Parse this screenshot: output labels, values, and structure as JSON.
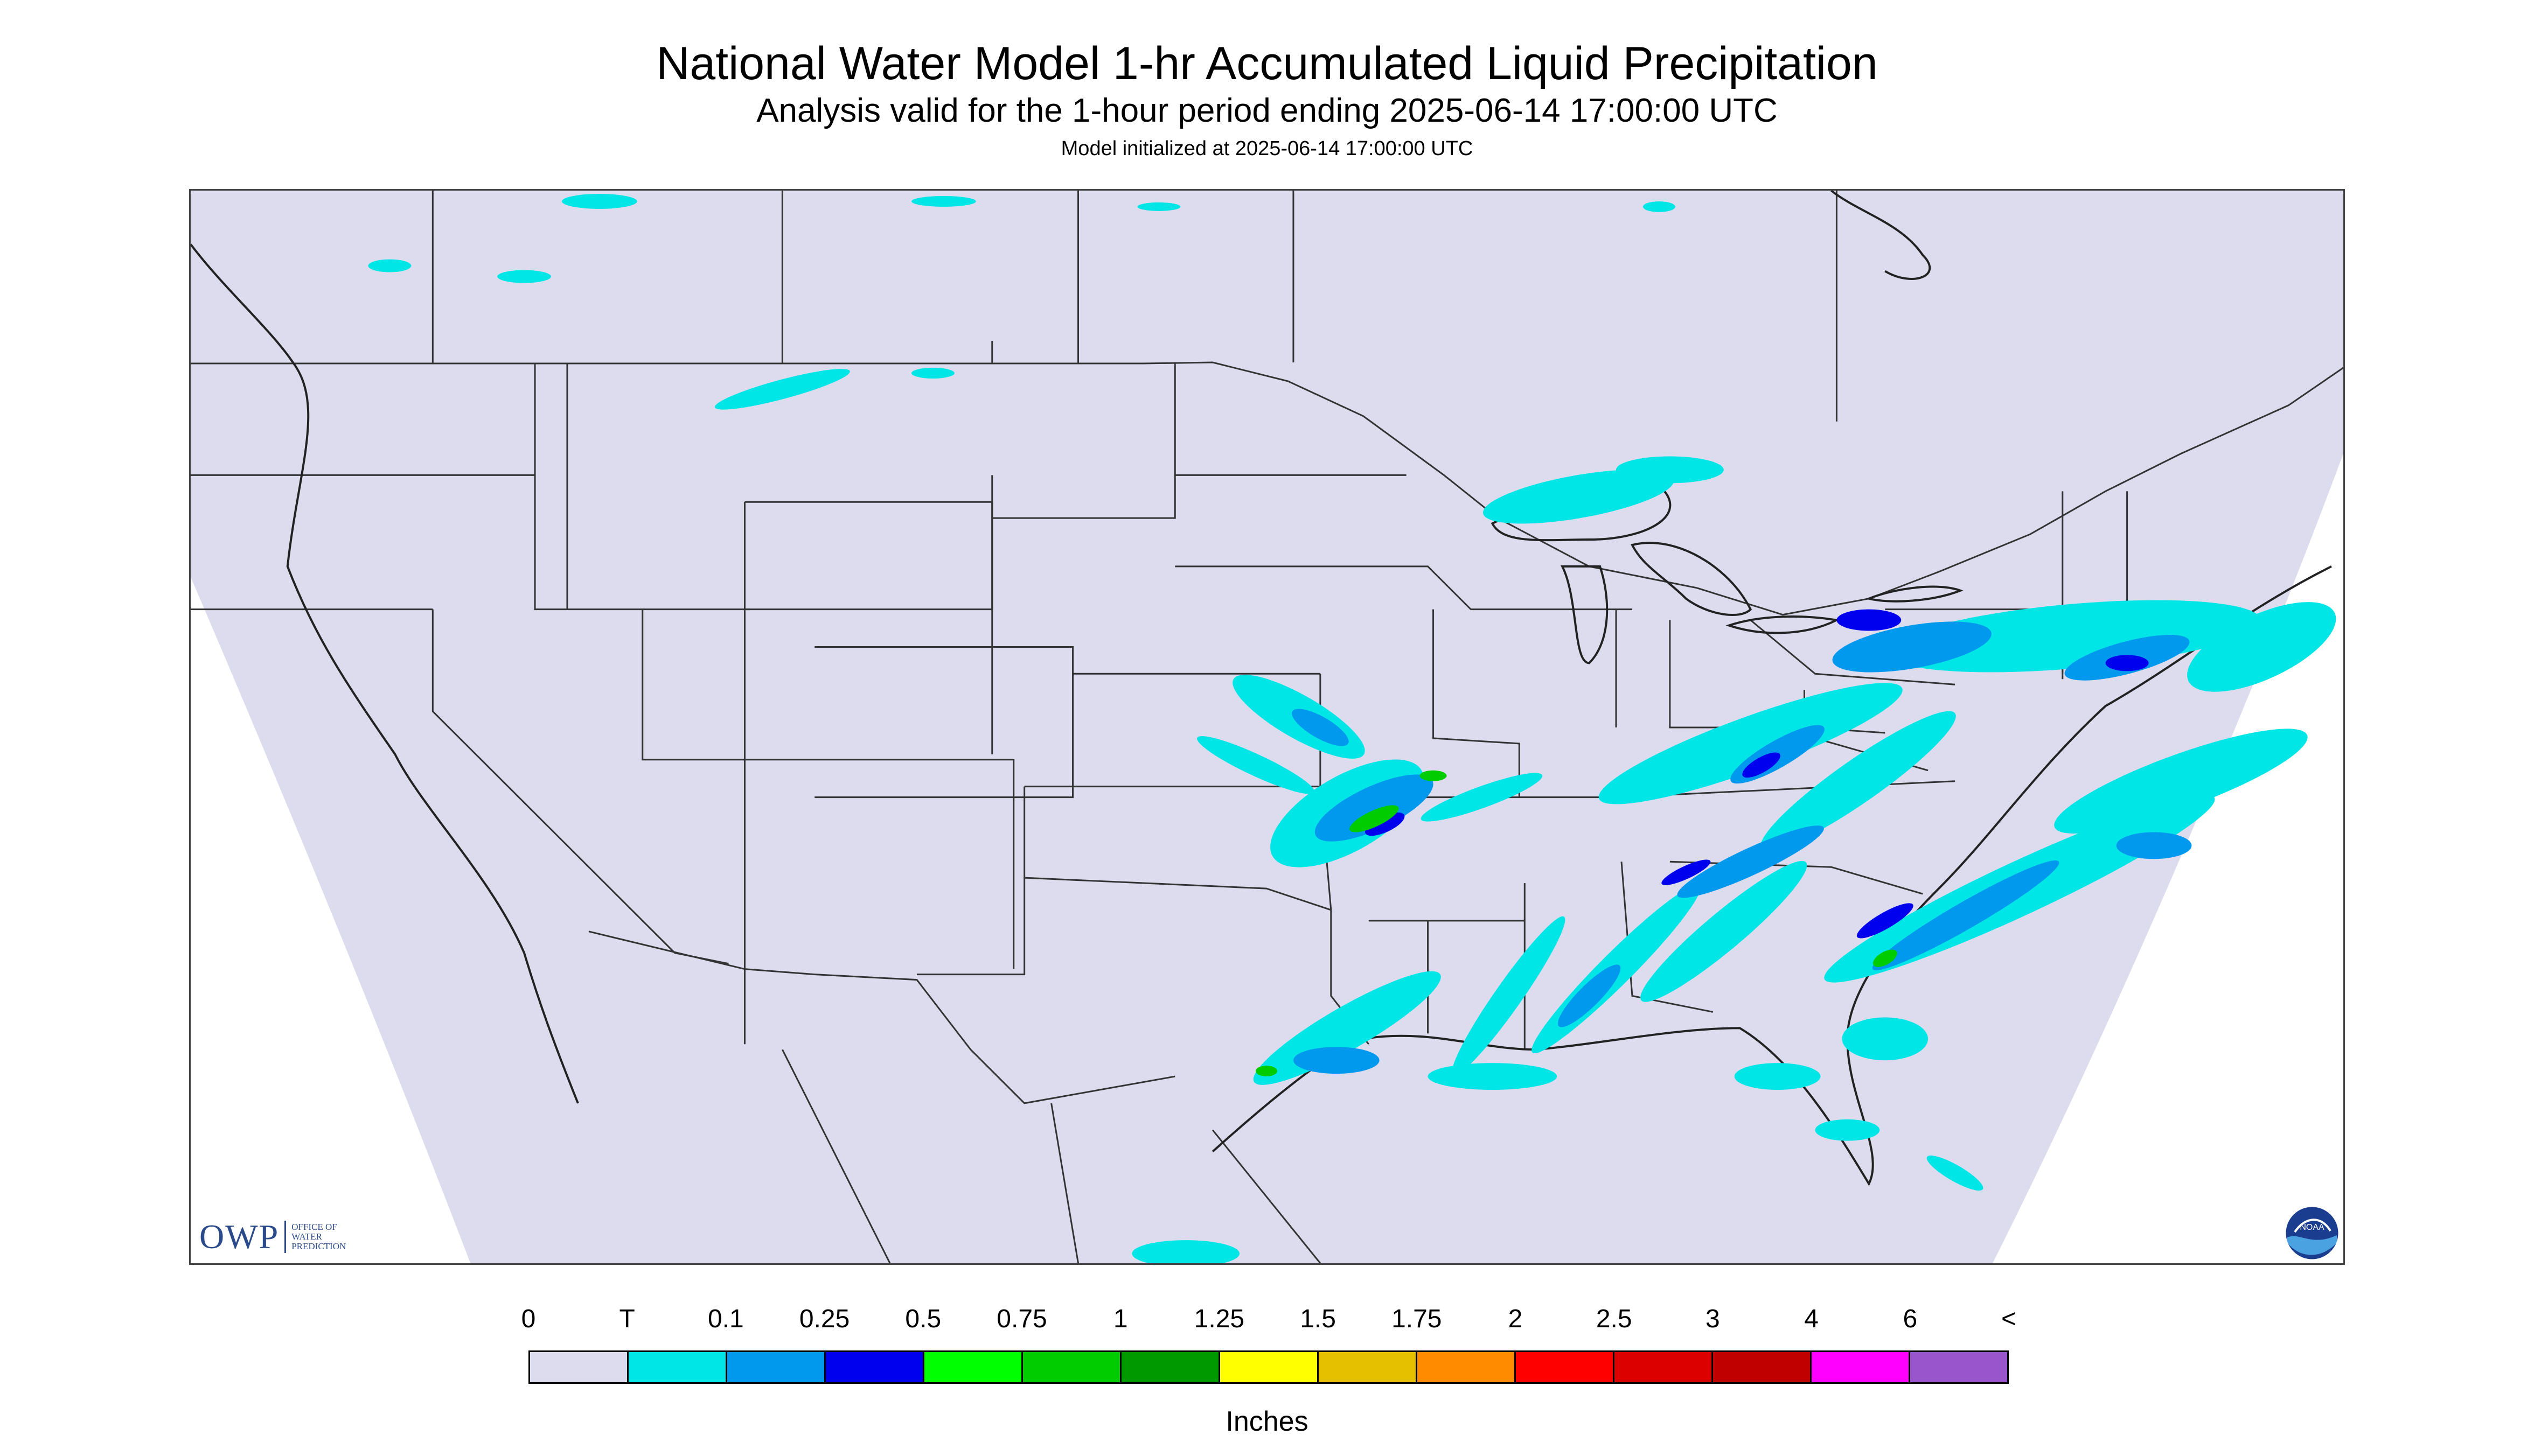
{
  "title": "National Water Model 1-hr Accumulated Liquid Precipitation",
  "subtitle": "Analysis valid for the 1-hour period ending 2025-06-14 17:00:00 UTC",
  "init_text": "Model initialized at 2025-06-14 17:00:00 UTC",
  "owp_logo": {
    "mark": "OWP",
    "text": "OFFICE OF WATER PREDICTION"
  },
  "noaa_logo": {
    "text": "NOAA",
    "icon": "noaa-emblem"
  },
  "legend": {
    "units": "Inches",
    "tick_labels": [
      "0",
      "T",
      "0.1",
      "0.25",
      "0.5",
      "0.75",
      "1",
      "1.25",
      "1.5",
      "1.75",
      "2",
      "2.5",
      "3",
      "4",
      "6",
      "<"
    ],
    "colors": [
      "#dcdcee",
      "#00e5e5",
      "#0099ee",
      "#0000ee",
      "#00ff00",
      "#00cc00",
      "#009900",
      "#ffff00",
      "#e5c000",
      "#ff8c00",
      "#ff0000",
      "#dd0000",
      "#c00000",
      "#ff00ff",
      "#9955cc"
    ]
  },
  "map": {
    "background_color": "#dcdcee",
    "outside_domain_color": "#ffffff",
    "border_color": "#444444",
    "precip_colors": {
      "trace": "#00e5e5",
      "light": "#0099ee",
      "moderate": "#0000ee",
      "green": "#00cc00"
    }
  }
}
